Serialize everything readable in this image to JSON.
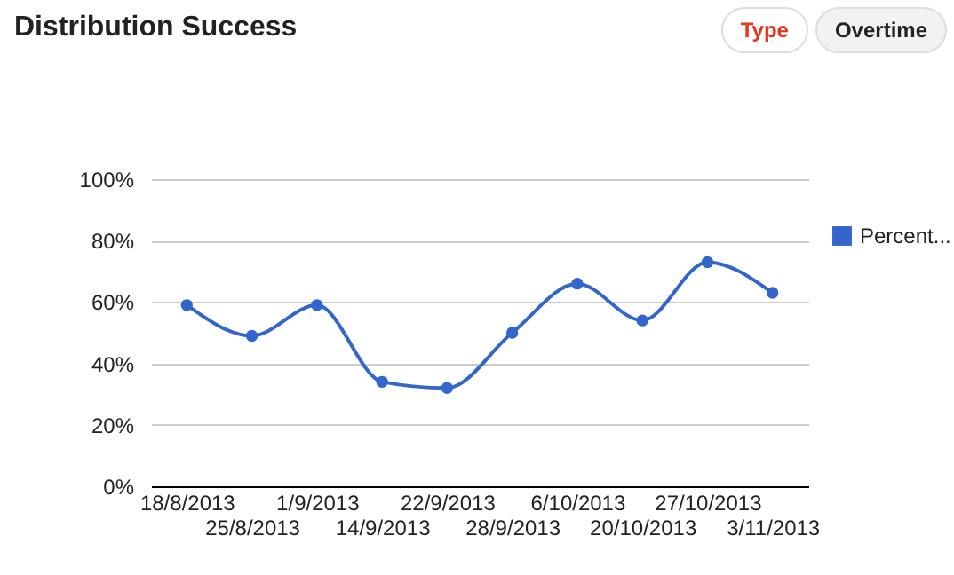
{
  "chart_data": {
    "type": "line",
    "title": "Distribution Success",
    "annotations": [
      "Type",
      "Overtime"
    ],
    "categories": [
      "18/8/2013",
      "25/8/2013",
      "1/9/2013",
      "14/9/2013",
      "22/9/2013",
      "28/9/2013",
      "6/10/2013",
      "20/10/2013",
      "27/10/2013",
      "3/11/2013"
    ],
    "series": [
      {
        "name": "Percent...",
        "color": "#3366cc",
        "values": [
          59,
          49,
          59,
          34,
          32,
          50,
          66,
          54,
          73,
          63
        ]
      }
    ],
    "ylim": [
      0,
      100
    ],
    "yticks": [
      {
        "value": 0,
        "label": "0%"
      },
      {
        "value": 20,
        "label": "20%"
      },
      {
        "value": 40,
        "label": "40%"
      },
      {
        "value": 60,
        "label": "60%"
      },
      {
        "value": 80,
        "label": "80%"
      },
      {
        "value": 100,
        "label": "100%"
      }
    ],
    "grid": "y",
    "legend": "top right",
    "marker": "circle",
    "line_style": "solid"
  }
}
